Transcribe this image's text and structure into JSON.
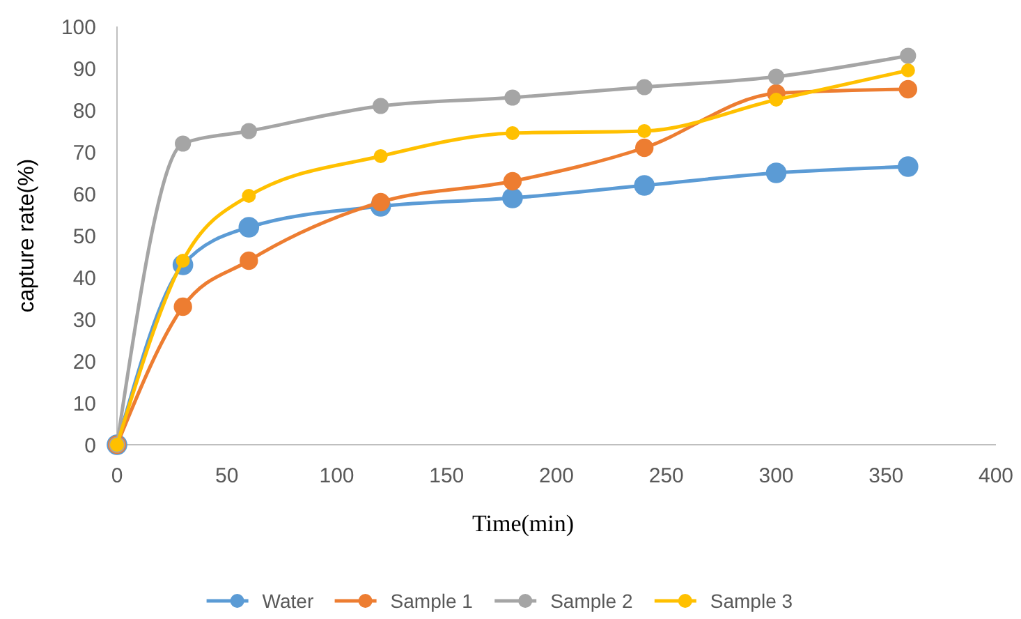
{
  "chart_data": {
    "type": "line",
    "xlabel": "Time(min)",
    "ylabel": "capture rate(%)",
    "x": [
      0,
      30,
      60,
      120,
      180,
      240,
      300,
      360
    ],
    "xlim": [
      0,
      400
    ],
    "xticks": [
      0,
      50,
      100,
      150,
      200,
      250,
      300,
      350,
      400
    ],
    "ylim": [
      0,
      100
    ],
    "yticks": [
      0,
      10,
      20,
      30,
      40,
      50,
      60,
      70,
      80,
      90,
      100
    ],
    "grid": false,
    "legend": "bottom",
    "marker": "circle",
    "line_style": "solid",
    "series": [
      {
        "name": "Water",
        "color": "#5b9bd5",
        "values": [
          0,
          43,
          52,
          57,
          59,
          62,
          65,
          66.5
        ]
      },
      {
        "name": "Sample 1",
        "color": "#ed7d31",
        "values": [
          0,
          33,
          44,
          58,
          63,
          71,
          84,
          85
        ]
      },
      {
        "name": "Sample 2",
        "color": "#a5a5a5",
        "values": [
          0,
          72,
          75,
          81,
          83,
          85.5,
          88,
          93
        ]
      },
      {
        "name": "Sample 3",
        "color": "#ffc000",
        "values": [
          0,
          44,
          59.5,
          69,
          74.5,
          75,
          82.5,
          89.5
        ]
      }
    ]
  }
}
